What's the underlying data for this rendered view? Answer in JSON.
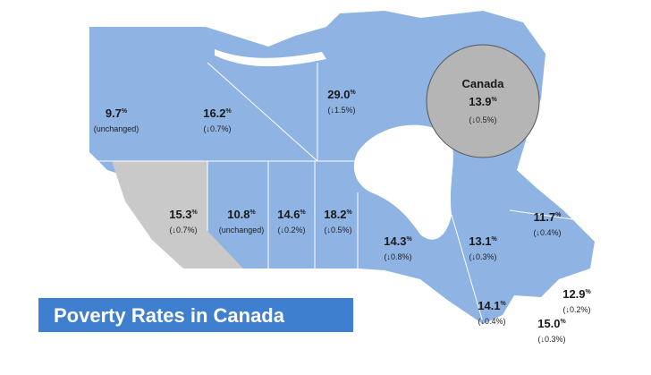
{
  "title": "Poverty Rates in Canada",
  "national": {
    "name": "Canada",
    "rate": "13.9",
    "unit": "%",
    "change": "(↓0.5%)"
  },
  "regions": [
    {
      "rate": "9.7",
      "unit": "%",
      "change": "(unchanged)"
    },
    {
      "rate": "16.2",
      "unit": "%",
      "change": "(↓0.7%)"
    },
    {
      "rate": "29.0",
      "unit": "%",
      "change": "(↓1.5%)"
    },
    {
      "rate": "15.3",
      "unit": "%",
      "change": "(↓0.7%)"
    },
    {
      "rate": "10.8",
      "unit": "%",
      "change": "(unchanged)"
    },
    {
      "rate": "14.6",
      "unit": "%",
      "change": "(↓0.2%)"
    },
    {
      "rate": "18.2",
      "unit": "%",
      "change": "(↓0.5%)"
    },
    {
      "rate": "14.3",
      "unit": "%",
      "change": "(↓0.8%)"
    },
    {
      "rate": "13.1",
      "unit": "%",
      "change": "(↓0.3%)"
    },
    {
      "rate": "11.7",
      "unit": "%",
      "change": "(↓0.4%)"
    },
    {
      "rate": "14.1",
      "unit": "%",
      "change": "(↓0.4%)"
    },
    {
      "rate": "15.0",
      "unit": "%",
      "change": "(↓0.3%)"
    },
    {
      "rate": "12.9",
      "unit": "%",
      "change": "(↓0.2%)"
    }
  ]
}
